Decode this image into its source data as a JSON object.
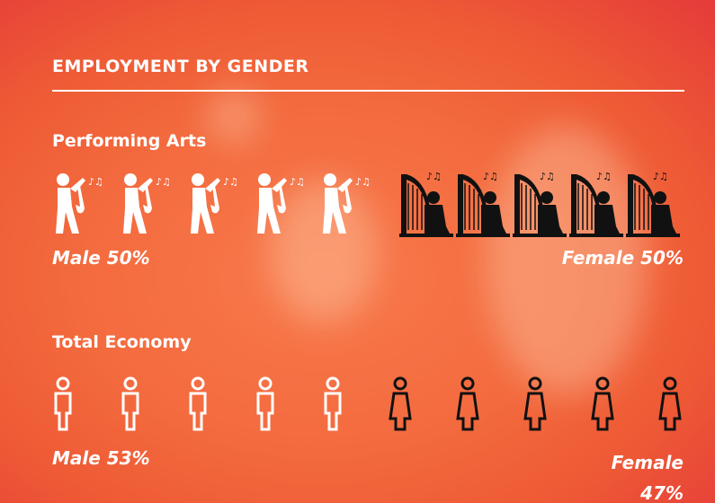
{
  "title": "EMPLOYMENT BY GENDER",
  "sections": [
    {
      "heading": "Performing Arts",
      "male_label": "Male 50%",
      "female_label": "Female 50%"
    },
    {
      "heading": "Total Economy",
      "male_label": "Male 53%",
      "female_label": "Female 47%"
    }
  ]
}
